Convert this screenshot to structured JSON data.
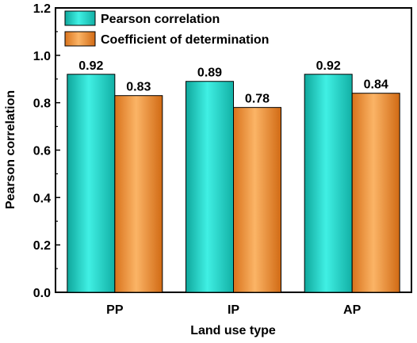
{
  "chart_data": {
    "type": "bar",
    "categories": [
      "PP",
      "IP",
      "AP"
    ],
    "series": [
      {
        "name": "Pearson correlation",
        "values": [
          0.92,
          0.89,
          0.92
        ],
        "color": "#22d3c8",
        "labels": [
          "0.92",
          "0.89",
          "0.92"
        ]
      },
      {
        "name": "Coefficient of determination",
        "values": [
          0.83,
          0.78,
          0.84
        ],
        "color": "#f59a3c",
        "labels": [
          "0.83",
          "0.78",
          "0.84"
        ]
      }
    ],
    "xlabel": "Land use type",
    "ylabel": "Pearson correlation",
    "ylim": [
      0,
      1.2
    ],
    "yticks": [
      0.0,
      0.2,
      0.4,
      0.6,
      0.8,
      1.0,
      1.2
    ],
    "ytick_labels": [
      "0.0",
      "0.2",
      "0.4",
      "0.6",
      "0.8",
      "1.0",
      "1.2"
    ],
    "legend_position": "top-left",
    "grid": false
  }
}
